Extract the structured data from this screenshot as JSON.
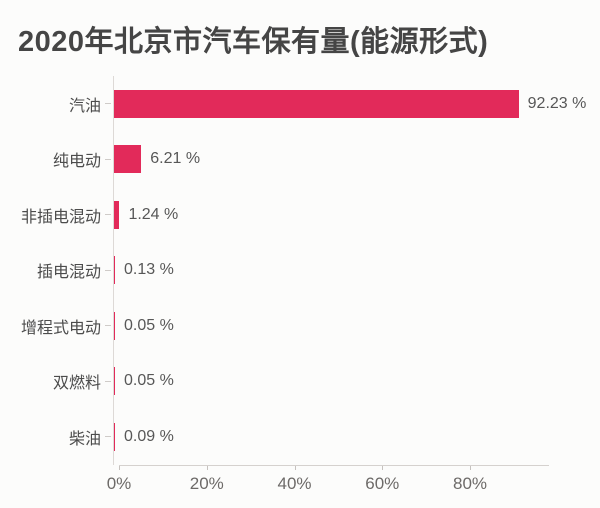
{
  "chart_data": {
    "type": "bar",
    "orientation": "horizontal",
    "title": "2020年北京市汽车保有量(能源形式)",
    "categories": [
      "汽油",
      "纯电动",
      "非插电混动",
      "插电混动",
      "增程式电动",
      "双燃料",
      "柴油"
    ],
    "values": [
      92.23,
      6.21,
      1.24,
      0.13,
      0.05,
      0.05,
      0.09
    ],
    "value_labels": [
      "92.23 %",
      "6.21 %",
      "1.24 %",
      "0.13 %",
      "0.05 %",
      "0.05 %",
      "0.09 %"
    ],
    "x_ticks": [
      "0%",
      "20%",
      "40%",
      "60%",
      "80%"
    ],
    "x_tick_values": [
      0,
      20,
      40,
      60,
      80
    ],
    "xlim": [
      0,
      98
    ],
    "xlabel": "",
    "ylabel": "",
    "grid": "off",
    "legend": "none",
    "bar_color": "#e22a5a",
    "axis_line_color": "#d5d1ce"
  }
}
